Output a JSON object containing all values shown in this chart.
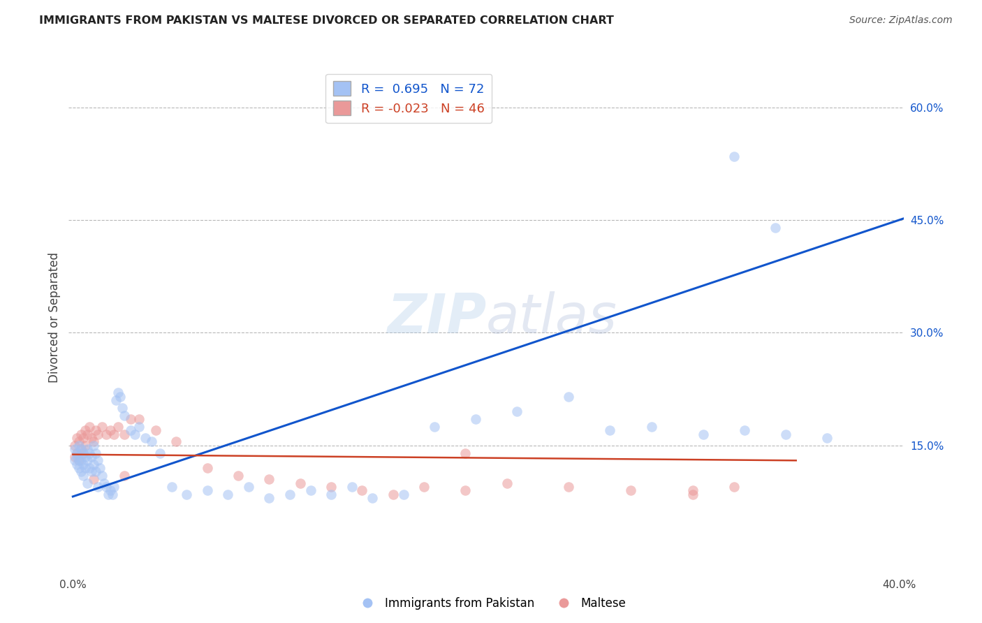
{
  "title": "IMMIGRANTS FROM PAKISTAN VS MALTESE DIVORCED OR SEPARATED CORRELATION CHART",
  "source": "Source: ZipAtlas.com",
  "ylabel": "Divorced or Separated",
  "xlabel": "",
  "watermark": "ZIPatlas",
  "xlim": [
    -0.002,
    0.402
  ],
  "ylim": [
    -0.02,
    0.66
  ],
  "blue_R": 0.695,
  "blue_N": 72,
  "pink_R": -0.023,
  "pink_N": 46,
  "blue_color": "#a4c2f4",
  "pink_color": "#ea9999",
  "blue_line_color": "#1155cc",
  "pink_line_color": "#cc4125",
  "grid_color": "#b7b7b7",
  "background_color": "#ffffff",
  "blue_scatter_x": [
    0.001,
    0.001,
    0.002,
    0.002,
    0.002,
    0.003,
    0.003,
    0.003,
    0.004,
    0.004,
    0.004,
    0.005,
    0.005,
    0.005,
    0.006,
    0.006,
    0.007,
    0.007,
    0.007,
    0.008,
    0.008,
    0.009,
    0.009,
    0.01,
    0.01,
    0.011,
    0.011,
    0.012,
    0.012,
    0.013,
    0.014,
    0.015,
    0.016,
    0.017,
    0.018,
    0.019,
    0.02,
    0.021,
    0.022,
    0.023,
    0.024,
    0.025,
    0.028,
    0.03,
    0.032,
    0.035,
    0.038,
    0.042,
    0.048,
    0.055,
    0.065,
    0.075,
    0.085,
    0.095,
    0.105,
    0.115,
    0.125,
    0.135,
    0.145,
    0.16,
    0.175,
    0.195,
    0.215,
    0.24,
    0.26,
    0.28,
    0.305,
    0.325,
    0.345,
    0.365,
    0.32,
    0.34
  ],
  "blue_scatter_y": [
    0.145,
    0.13,
    0.14,
    0.125,
    0.135,
    0.15,
    0.13,
    0.12,
    0.145,
    0.13,
    0.115,
    0.14,
    0.125,
    0.11,
    0.135,
    0.12,
    0.145,
    0.13,
    0.1,
    0.14,
    0.12,
    0.135,
    0.115,
    0.15,
    0.125,
    0.14,
    0.115,
    0.13,
    0.095,
    0.12,
    0.11,
    0.1,
    0.095,
    0.085,
    0.09,
    0.085,
    0.095,
    0.21,
    0.22,
    0.215,
    0.2,
    0.19,
    0.17,
    0.165,
    0.175,
    0.16,
    0.155,
    0.14,
    0.095,
    0.085,
    0.09,
    0.085,
    0.095,
    0.08,
    0.085,
    0.09,
    0.085,
    0.095,
    0.08,
    0.085,
    0.175,
    0.185,
    0.195,
    0.215,
    0.17,
    0.175,
    0.165,
    0.17,
    0.165,
    0.16,
    0.535,
    0.44
  ],
  "pink_scatter_x": [
    0.001,
    0.001,
    0.002,
    0.002,
    0.003,
    0.003,
    0.004,
    0.004,
    0.005,
    0.005,
    0.006,
    0.006,
    0.007,
    0.008,
    0.009,
    0.01,
    0.011,
    0.012,
    0.014,
    0.016,
    0.018,
    0.02,
    0.022,
    0.025,
    0.028,
    0.032,
    0.04,
    0.05,
    0.065,
    0.08,
    0.095,
    0.11,
    0.125,
    0.14,
    0.155,
    0.17,
    0.19,
    0.21,
    0.24,
    0.27,
    0.3,
    0.32,
    0.3,
    0.01,
    0.025,
    0.19
  ],
  "pink_scatter_y": [
    0.15,
    0.135,
    0.16,
    0.14,
    0.155,
    0.13,
    0.165,
    0.145,
    0.16,
    0.14,
    0.17,
    0.15,
    0.165,
    0.175,
    0.16,
    0.155,
    0.17,
    0.165,
    0.175,
    0.165,
    0.17,
    0.165,
    0.175,
    0.165,
    0.185,
    0.185,
    0.17,
    0.155,
    0.12,
    0.11,
    0.105,
    0.1,
    0.095,
    0.09,
    0.085,
    0.095,
    0.09,
    0.1,
    0.095,
    0.09,
    0.085,
    0.095,
    0.09,
    0.105,
    0.11,
    0.14
  ],
  "blue_line_x": [
    0.0,
    0.402
  ],
  "blue_line_y": [
    0.082,
    0.452
  ],
  "pink_line_x": [
    0.0,
    0.35
  ],
  "pink_line_y": [
    0.138,
    0.13
  ],
  "ytick_positions": [
    0.15,
    0.3,
    0.45,
    0.6
  ],
  "ytick_labels": [
    "15.0%",
    "30.0%",
    "45.0%",
    "60.0%"
  ],
  "xtick_positions": [
    0.0,
    0.1,
    0.2,
    0.3,
    0.4
  ],
  "xtick_labels": [
    "0.0%",
    "",
    "",
    "",
    "40.0%"
  ]
}
